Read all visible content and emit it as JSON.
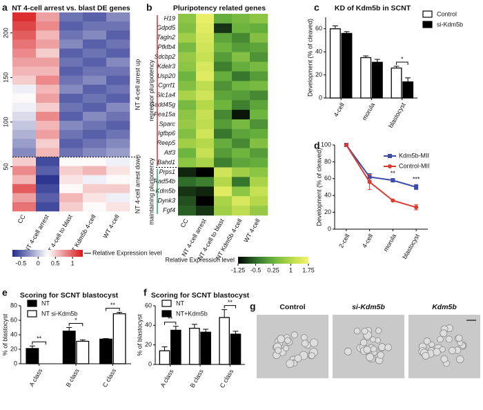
{
  "chart_data": [
    {
      "type": "heatmap",
      "panel": "a",
      "title": "NT 4-cell arrest vs. blast DE genes",
      "columns": [
        "CC",
        "NT 4-cell arrest",
        "NT 4-cell to blast",
        "NT Kdm5b 4-cell",
        "WT 4-cell"
      ],
      "ylim": [
        0,
        223
      ],
      "yticks": [
        50,
        100,
        150,
        200
      ],
      "clim": [
        -0.75,
        1.3
      ],
      "colors": [
        "#232c8c",
        "#ffffff",
        "#d7191c"
      ],
      "colorbar_ticks": [
        -0.5,
        0,
        0.5,
        1
      ],
      "colorbar_label": "Relative Expression level",
      "groups": [
        {
          "label": "NT 4-cell arrest up",
          "values": [
            [
              1.2,
              0.7,
              -0.4,
              -0.5,
              -0.3
            ],
            [
              1.1,
              0.8,
              -0.5,
              -0.4,
              -0.4
            ],
            [
              1.0,
              0.6,
              -0.4,
              -0.3,
              -0.5
            ],
            [
              0.9,
              0.7,
              -0.3,
              -0.5,
              -0.4
            ],
            [
              0.8,
              0.5,
              -0.5,
              -0.4,
              -0.5
            ],
            [
              0.7,
              0.7,
              -0.4,
              -0.5,
              -0.3
            ],
            [
              0.6,
              0.6,
              -0.5,
              -0.4,
              -0.4
            ],
            [
              0.5,
              0.8,
              -0.4,
              -0.3,
              -0.5
            ],
            [
              0.2,
              0.6,
              -0.3,
              -0.5,
              -0.4
            ],
            [
              0.3,
              0.7,
              -0.5,
              -0.4,
              -0.5
            ],
            [
              0.2,
              0.5,
              -0.4,
              -0.5,
              -0.3
            ],
            [
              0.1,
              0.8,
              -0.5,
              -0.3,
              -0.4
            ],
            [
              0.0,
              0.6,
              -0.3,
              -0.4,
              -0.5
            ],
            [
              -0.1,
              0.7,
              -0.4,
              -0.5,
              -0.4
            ],
            [
              -0.2,
              0.5,
              -0.5,
              -0.4,
              -0.3
            ],
            [
              -0.3,
              0.6,
              -0.4,
              -0.3,
              -0.2
            ]
          ]
        },
        {
          "label": "NT 4-cell arrest down",
          "values": [
            [
              0.5,
              -0.6,
              0.3,
              0.3,
              0.2
            ],
            [
              0.8,
              -0.5,
              0.5,
              0.6,
              0.4
            ],
            [
              0.6,
              -0.7,
              0.4,
              0.2,
              0.3
            ],
            [
              1.0,
              -0.6,
              0.3,
              0.5,
              0.5
            ],
            [
              0.7,
              -0.5,
              0.6,
              0.4,
              0.2
            ],
            [
              0.9,
              -0.6,
              0.5,
              0.3,
              0.4
            ]
          ]
        }
      ]
    },
    {
      "type": "heatmap",
      "panel": "b",
      "title": "Pluripotency related genes",
      "columns": [
        "CC",
        "NT 4-cell arrest",
        "NT 4-cell to blast",
        "NT Kdm5b 4-cell",
        "WT 4-cell"
      ],
      "clim": [
        -1.25,
        1.75
      ],
      "colors": [
        "#000000",
        "#2f6d2a",
        "#69b33f",
        "#b5d84a",
        "#f5f56e"
      ],
      "colorbar_ticks": [
        -1.25,
        -0.5,
        0.25,
        1,
        1.75
      ],
      "colorbar_label": "Relative Expression level",
      "groups": [
        {
          "label": "repressor pluripotency",
          "color": "#d03030",
          "rows": [
            "H19",
            "Gdpd5",
            "Tagln2",
            "Pfkfb4",
            "Sdcbp2",
            "Kdelr3",
            "Usp20",
            "Cgrrf1",
            "Slc1a4",
            "Gadd45g",
            "Pea15a",
            "Sparc",
            "Igfbp6",
            "Reep5",
            "Atf3",
            "Bahd1"
          ],
          "values": [
            [
              0.6,
              1.6,
              0.2,
              0.4,
              0.6
            ],
            [
              0.5,
              1.5,
              -0.9,
              0.3,
              0.2
            ],
            [
              0.8,
              1.4,
              0.1,
              -0.2,
              0.5
            ],
            [
              0.4,
              1.3,
              0.3,
              0.0,
              0.1
            ],
            [
              0.7,
              1.2,
              0.0,
              0.5,
              -0.1
            ],
            [
              0.6,
              1.4,
              -0.3,
              0.2,
              0.4
            ],
            [
              0.3,
              1.5,
              0.2,
              -0.4,
              0.0
            ],
            [
              0.5,
              1.1,
              -0.1,
              0.3,
              0.4
            ],
            [
              0.9,
              1.3,
              0.1,
              0.0,
              -0.2
            ],
            [
              0.4,
              1.0,
              0.3,
              -0.3,
              0.1
            ],
            [
              0.6,
              1.2,
              -0.2,
              -1.1,
              0.3
            ],
            [
              0.7,
              1.1,
              0.0,
              0.4,
              -0.1
            ],
            [
              0.5,
              1.3,
              -0.4,
              0.1,
              0.2
            ],
            [
              0.8,
              1.0,
              0.2,
              -0.2,
              0.5
            ],
            [
              0.3,
              1.2,
              0.0,
              0.3,
              0.0
            ],
            [
              0.6,
              0.9,
              -0.3,
              0.1,
              0.2
            ]
          ]
        },
        {
          "label": "maintaining pluripotency",
          "color": "#2aa05a",
          "rows": [
            "Prps1",
            "Rad54b",
            "Kdm5b",
            "Dynk3",
            "Fgf4"
          ],
          "values": [
            [
              -1.0,
              -1.25,
              1.3,
              0.8,
              0.6
            ],
            [
              -0.5,
              -0.3,
              1.0,
              -0.4,
              0.9
            ],
            [
              -0.9,
              -1.0,
              1.5,
              0.6,
              1.2
            ],
            [
              -0.7,
              -1.25,
              0.9,
              1.4,
              1.0
            ],
            [
              -0.6,
              -0.9,
              0.8,
              1.1,
              0.7
            ]
          ]
        }
      ]
    },
    {
      "type": "bar",
      "panel": "c",
      "title": "KD of Kdm5b in SCNT",
      "ylabel": "Development (% of cleaved)",
      "categories": [
        "4-cell",
        "morula",
        "blastocyst"
      ],
      "ylim": [
        0,
        70
      ],
      "yticks": [
        0,
        20,
        40,
        60
      ],
      "legend": "outside right",
      "series": [
        {
          "name": "Control",
          "color": "#ffffff",
          "values": [
            60,
            35,
            26
          ],
          "errors": [
            2.5,
            1.5,
            1.5
          ]
        },
        {
          "name": "si-Kdm5b",
          "color": "#000000",
          "values": [
            56,
            31,
            14
          ],
          "errors": [
            1.5,
            2.5,
            3.5
          ]
        }
      ],
      "significance": [
        null,
        null,
        "*"
      ]
    },
    {
      "type": "line",
      "panel": "d",
      "ylabel": "Development (% of cleaved)",
      "categories": [
        "2-cell",
        "4-cell",
        "morula",
        "blastocyst"
      ],
      "ylim": [
        0,
        100
      ],
      "yticks": [
        0,
        20,
        40,
        60,
        80,
        100
      ],
      "legend": "upper right",
      "series": [
        {
          "name": "Kdm5b-MII",
          "color": "#3b4ba8",
          "marker": "s",
          "values": [
            100,
            62,
            58,
            50
          ],
          "errors": [
            0,
            4,
            2,
            3
          ]
        },
        {
          "name": "Control-MII",
          "color": "#d93a30",
          "marker": "o",
          "values": [
            100,
            56,
            34,
            26
          ],
          "errors": [
            0,
            9,
            1,
            3
          ]
        }
      ],
      "significance": [
        null,
        null,
        "**",
        "***"
      ]
    },
    {
      "type": "bar",
      "panel": "e",
      "title": "Scoring for SCNT blastocyst",
      "ylabel": "% of blastocyst",
      "categories": [
        "A class",
        "B class",
        "C class"
      ],
      "ylim": [
        0,
        80
      ],
      "yticks": [
        0,
        20,
        40,
        60,
        80
      ],
      "legend": "upper left",
      "series": [
        {
          "name": "NT",
          "color": "#000000",
          "values": [
            21,
            45,
            34
          ],
          "errors": [
            3.5,
            5,
            0.8
          ]
        },
        {
          "name": "NT si-Kdm5b",
          "color": "#ffffff",
          "values": [
            0,
            31,
            69
          ],
          "errors": [
            0,
            2,
            2
          ]
        }
      ],
      "significance": [
        "**",
        "*",
        "**"
      ]
    },
    {
      "type": "bar",
      "panel": "f",
      "title": "Scoring for SCNT blastocyst",
      "ylabel": "% of blastocyst",
      "categories": [
        "A class",
        "B class",
        "C class"
      ],
      "ylim": [
        0,
        60
      ],
      "yticks": [
        0,
        20,
        40,
        60
      ],
      "legend": "upper left",
      "series": [
        {
          "name": "NT",
          "color": "#ffffff",
          "values": [
            14,
            37,
            48
          ],
          "errors": [
            4,
            4,
            8
          ]
        },
        {
          "name": "NT+Kdm5b",
          "color": "#000000",
          "values": [
            35,
            33,
            31
          ],
          "errors": [
            4,
            3,
            3
          ]
        }
      ],
      "significance": [
        "**",
        null,
        "**"
      ]
    },
    {
      "type": "image",
      "panel": "g",
      "labels": [
        "Control",
        "si-Kdm5b",
        "Kdm5b"
      ]
    }
  ]
}
